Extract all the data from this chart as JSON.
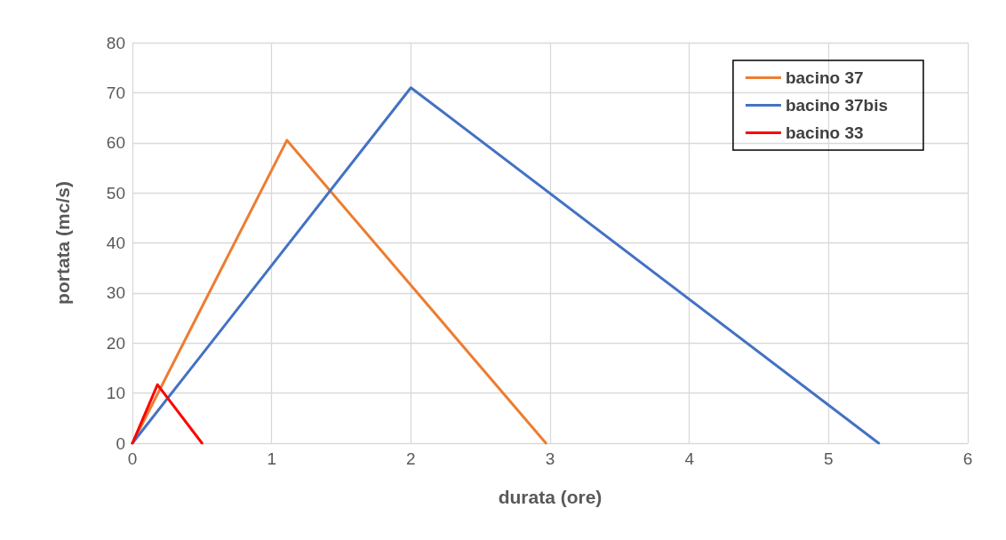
{
  "chart_data": {
    "type": "line",
    "xlabel": "durata (ore)",
    "ylabel": "portata (mc/s)",
    "xlim": [
      0,
      6
    ],
    "xticks": [
      0,
      1,
      2,
      3,
      4,
      5,
      6
    ],
    "ylim": [
      0,
      80
    ],
    "yticks": [
      0,
      10,
      20,
      30,
      40,
      50,
      60,
      70,
      80
    ],
    "grid": true,
    "legend": "top right",
    "marker": "none",
    "line_style": "solid",
    "series": [
      {
        "name": "bacino 37",
        "color": "#ed7d31",
        "x": [
          0,
          1.11,
          2.97
        ],
        "values": [
          0,
          60.5,
          0
        ]
      },
      {
        "name": "bacino 37bis",
        "color": "#4472c4",
        "x": [
          0,
          2.0,
          5.36
        ],
        "values": [
          0,
          71,
          0
        ]
      },
      {
        "name": "bacino 33",
        "color": "#ff0000",
        "x": [
          0,
          0.18,
          0.5
        ],
        "values": [
          0,
          11.7,
          0
        ]
      }
    ]
  }
}
